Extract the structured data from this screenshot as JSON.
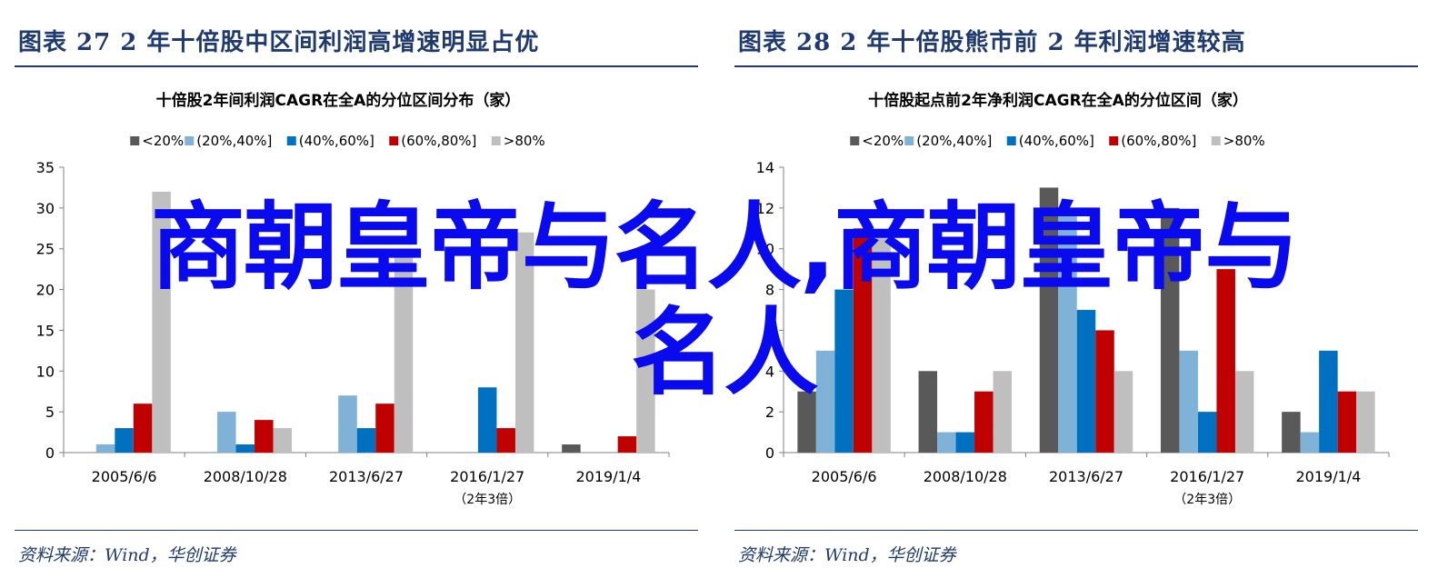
{
  "colors": {
    "heading": "#1f3a6e",
    "overlay": "#0a0aee",
    "series": [
      "#595959",
      "#7fb2d6",
      "#0070c0",
      "#c00000",
      "#bfbfbf"
    ]
  },
  "overlay": {
    "line1": "商朝皇帝与名人,商朝皇帝与",
    "line2": "名人"
  },
  "figures": [
    {
      "heading": "图表 27    2 年十倍股中区间利润高增速明显占优",
      "source": "资料来源：Wind，华创证券"
    },
    {
      "heading": "图表 28    2 年十倍股熊市前 2 年利润增速较高",
      "source": "资料来源：Wind，华创证券"
    }
  ],
  "chart_data": [
    {
      "type": "bar",
      "title": "十倍股2年间利润CAGR在全A的分位区间分布（家）",
      "categories": [
        "2005/6/6",
        "2008/10/28",
        "2013/6/27",
        "2016/1/27",
        "2019/1/4"
      ],
      "category_sublabels": [
        "",
        "",
        "",
        "（2年3倍）",
        ""
      ],
      "ylim": [
        0,
        35
      ],
      "yticks": [
        0,
        5,
        10,
        15,
        20,
        25,
        30,
        35
      ],
      "legend_position": "top",
      "series": [
        {
          "name": "<20%",
          "values": [
            0,
            0,
            0,
            0,
            1
          ]
        },
        {
          "name": "(20%,40%]",
          "values": [
            1,
            5,
            7,
            0,
            0
          ]
        },
        {
          "name": "(40%,60%]",
          "values": [
            3,
            1,
            3,
            8,
            0
          ]
        },
        {
          "name": "(60%,80%]",
          "values": [
            6,
            4,
            6,
            3,
            2
          ]
        },
        {
          "name": ">80%",
          "values": [
            32,
            3,
            25,
            27,
            20
          ]
        }
      ]
    },
    {
      "type": "bar",
      "title": "十倍股起点前2年净利润CAGR在全A的分位区间（家）",
      "categories": [
        "2005/6/6",
        "2008/10/28",
        "2013/6/27",
        "2016/1/27",
        "2019/1/4"
      ],
      "category_sublabels": [
        "",
        "",
        "",
        "（2年3倍）",
        ""
      ],
      "ylim": [
        0,
        14
      ],
      "yticks": [
        0,
        2,
        4,
        6,
        8,
        10,
        12,
        14
      ],
      "legend_position": "top",
      "series": [
        {
          "name": "<20%",
          "values": [
            3,
            4,
            13,
            12,
            2
          ]
        },
        {
          "name": "(20%,40%]",
          "values": [
            5,
            1,
            12,
            5,
            1
          ]
        },
        {
          "name": "(40%,60%]",
          "values": [
            8,
            1,
            7,
            2,
            5
          ]
        },
        {
          "name": "(60%,80%]",
          "values": [
            11,
            3,
            6,
            9,
            3
          ]
        },
        {
          "name": ">80%",
          "values": [
            11,
            4,
            4,
            4,
            3
          ]
        }
      ]
    }
  ]
}
